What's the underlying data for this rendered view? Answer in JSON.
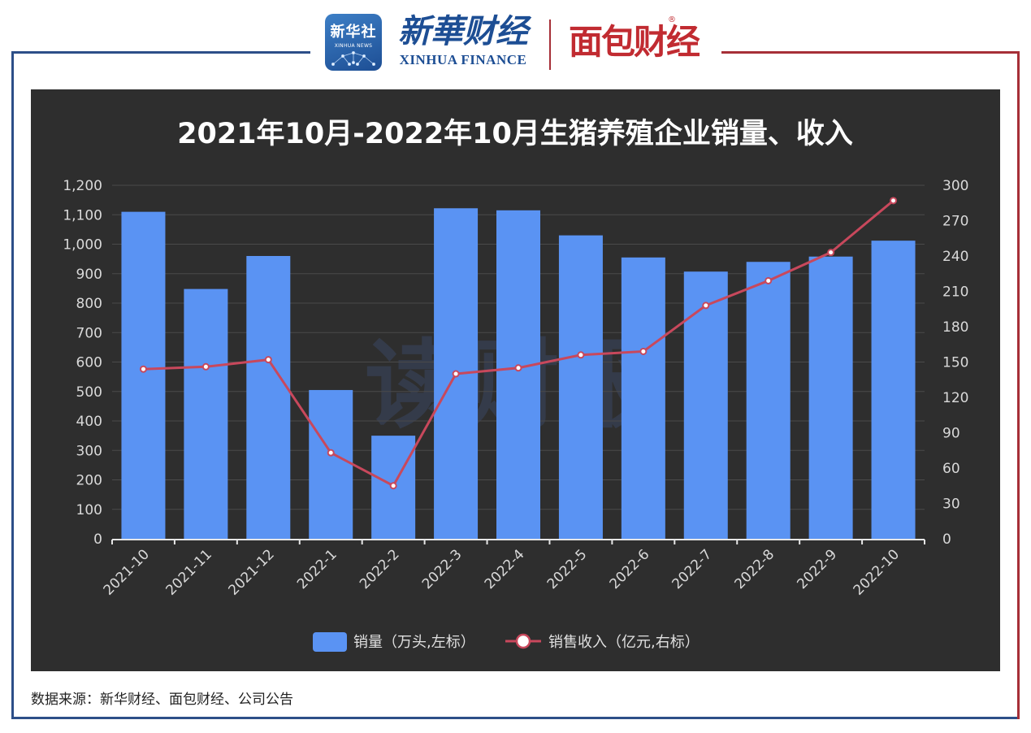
{
  "header": {
    "xinhua_badge_cn": "新华社",
    "xinhua_badge_en": "XINHUA NEWS",
    "finance_cn": "新華财经",
    "finance_en": "XINHUA FINANCE",
    "mianbao": "面包财经",
    "reg_mark": "®"
  },
  "watermark": "读财报",
  "source": "数据来源：新华财经、面包财经、公司公告",
  "colors": {
    "background": "#2e2e2e",
    "bar": "#5a93f3",
    "line": "#c8485c",
    "left_frame": "#2d4f88",
    "right_frame": "#a62f37"
  },
  "chart_data": {
    "type": "bar",
    "title": "2021年10月-2022年10月生猪养殖企业销量、收入",
    "categories": [
      "2021-10",
      "2021-11",
      "2021-12",
      "2022-1",
      "2022-2",
      "2022-3",
      "2022-4",
      "2022-5",
      "2022-6",
      "2022-7",
      "2022-8",
      "2022-9",
      "2022-10"
    ],
    "series": [
      {
        "name": "销量（万头,左标）",
        "type": "bar",
        "axis": "left",
        "values": [
          1110,
          848,
          960,
          505,
          350,
          1122,
          1115,
          1030,
          955,
          907,
          940,
          958,
          1012
        ]
      },
      {
        "name": "销售收入（亿元,右标）",
        "type": "line",
        "axis": "right",
        "values": [
          144,
          146,
          152,
          73,
          45,
          140,
          145,
          156,
          159,
          198,
          219,
          243,
          287
        ]
      }
    ],
    "y_left": {
      "min": 0,
      "max": 1200,
      "step": 100,
      "ticks": [
        "0",
        "100",
        "200",
        "300",
        "400",
        "500",
        "600",
        "700",
        "800",
        "900",
        "1,000",
        "1,100",
        "1,200"
      ]
    },
    "y_right": {
      "min": 0,
      "max": 300,
      "step": 30,
      "ticks": [
        "0",
        "30",
        "60",
        "90",
        "120",
        "150",
        "180",
        "210",
        "240",
        "270",
        "300"
      ]
    },
    "grid": true,
    "legend_position": "bottom-center"
  }
}
